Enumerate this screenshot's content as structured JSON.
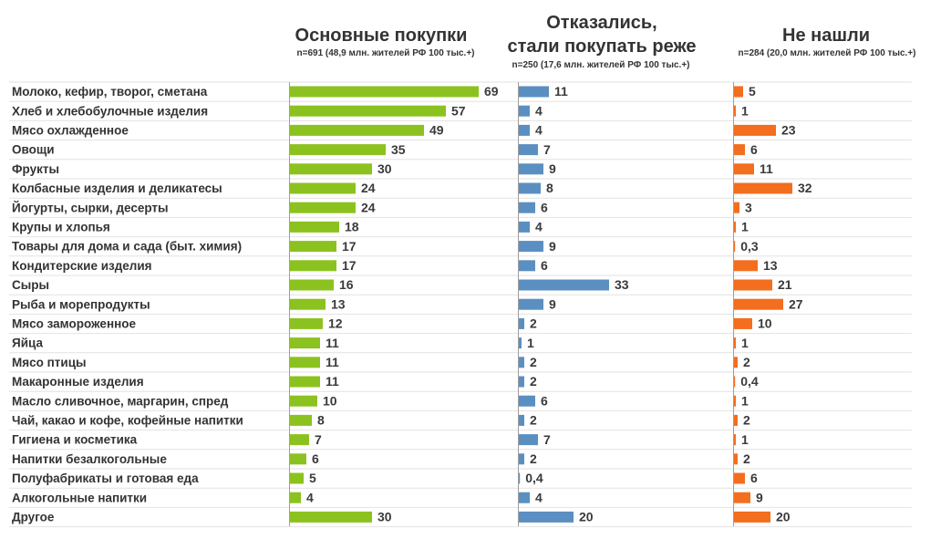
{
  "chart_data": {
    "type": "bar",
    "orientation": "horizontal",
    "categories": [
      "Молоко, кефир, творог, сметана",
      "Хлеб и хлебобулочные изделия",
      "Мясо  охлажденное",
      "Овощи",
      "Фрукты",
      "Колбасные изделия и  деликатесы",
      "Йогурты, сырки, десерты",
      "Крупы и хлопья",
      "Товары для дома и сада (быт. химия)",
      "Кондитерские изделия",
      "Сыры",
      "Рыба и морепродукты",
      "Мясо замороженное",
      "Яйца",
      "Мясо птицы",
      "Макаронные изделия",
      "Масло сливочное, маргарин, спред",
      "Чай, какао и кофе, кофейные напитки",
      "Гигиена и косметика",
      "Напитки безалкогольные",
      "Полуфабрикаты и готовая еда",
      "Алкогольные напитки",
      "Другое"
    ],
    "series": [
      {
        "name": "Основные покупки",
        "subtitle": "n=691 (48,9 млн. жителей РФ 100 тыс.+)",
        "color": "#8cc21f",
        "values": [
          69,
          57,
          49,
          35,
          30,
          24,
          24,
          18,
          17,
          17,
          16,
          13,
          12,
          11,
          11,
          11,
          10,
          8,
          7,
          6,
          5,
          4,
          30
        ],
        "labels": [
          "69",
          "57",
          "49",
          "35",
          "30",
          "24",
          "24",
          "18",
          "17",
          "17",
          "16",
          "13",
          "12",
          "11",
          "11",
          "11",
          "10",
          "8",
          "7",
          "6",
          "5",
          "4",
          "30"
        ]
      },
      {
        "name": "Отказались,\nстали покупать реже",
        "subtitle": "n=250 (17,6 млн. жителей РФ 100 тыс.+)",
        "color": "#5b8fc2",
        "values": [
          11,
          4,
          4,
          7,
          9,
          8,
          6,
          4,
          9,
          6,
          33,
          9,
          2,
          1,
          2,
          2,
          6,
          2,
          7,
          2,
          0.4,
          4,
          20
        ],
        "labels": [
          "11",
          "4",
          "4",
          "7",
          "9",
          "8",
          "6",
          "4",
          "9",
          "6",
          "33",
          "9",
          "2",
          "1",
          "2",
          "2",
          "6",
          "2",
          "7",
          "2",
          "0,4",
          "4",
          "20"
        ]
      },
      {
        "name": "Не нашли",
        "subtitle": "n=284 (20,0 млн. жителей РФ 100 тыс.+)",
        "color": "#f36e1e",
        "values": [
          5,
          1,
          23,
          6,
          11,
          32,
          3,
          1,
          0.3,
          13,
          21,
          27,
          10,
          1,
          2,
          0.4,
          1,
          2,
          1,
          2,
          6,
          9,
          20
        ],
        "labels": [
          "5",
          "1",
          "23",
          "6",
          "11",
          "32",
          "3",
          "1",
          "0,3",
          "13",
          "21",
          "27",
          "10",
          "1",
          "2",
          "0,4",
          "1",
          "2",
          "1",
          "2",
          "6",
          "9",
          "20"
        ]
      }
    ]
  }
}
